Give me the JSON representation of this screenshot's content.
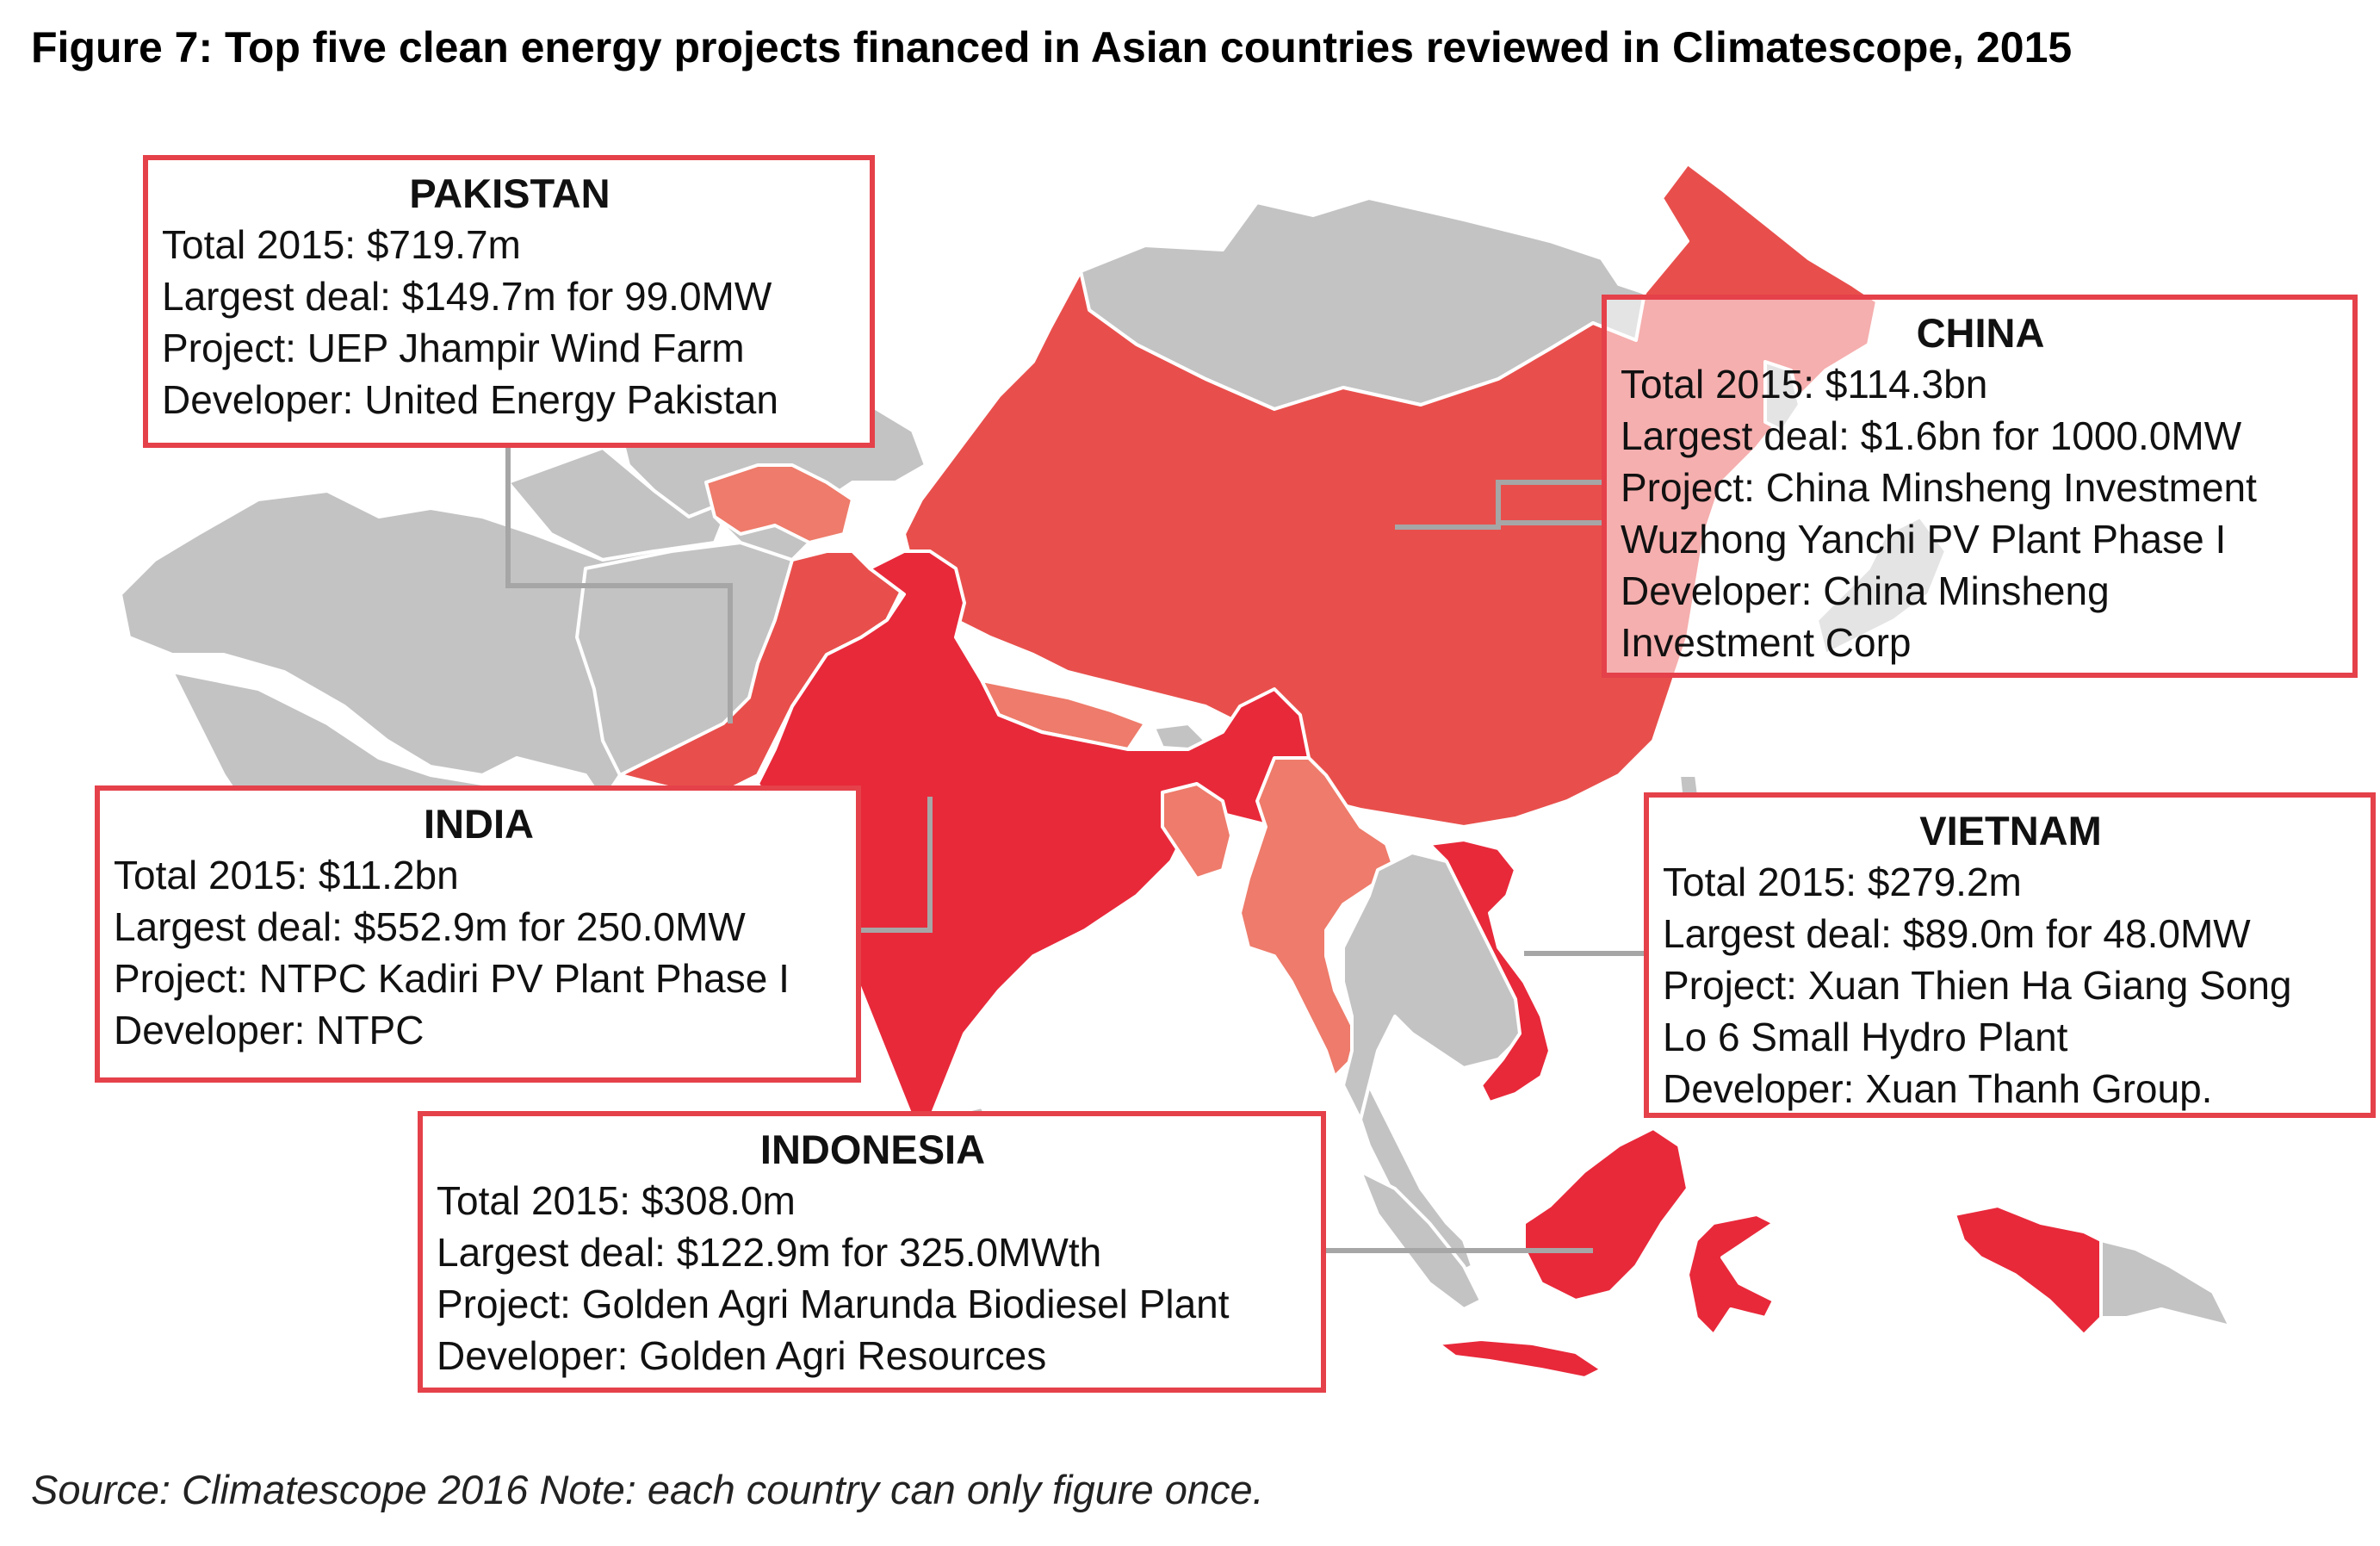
{
  "title": "Figure 7: Top five clean energy projects financed in Asian countries reviewed in Climatescope, 2015",
  "source": "Source: Climatescope 2016 Note: each country can only figure once.",
  "colors": {
    "high": "#e8293a",
    "mid": "#e84f4c",
    "low": "#ee7b6b",
    "pale": "#f29ca0",
    "not_covered": "#c3c3c3",
    "border": "#e5414a",
    "leader": "#a6a6a6"
  },
  "boxes": {
    "pakistan": {
      "country": "PAKISTAN",
      "total": "Total 2015: $719.7m",
      "largest_deal": "Largest deal: $149.7m  for 99.0MW",
      "project": "Project: UEP Jhampir Wind Farm",
      "developer": "Developer: United Energy Pakistan"
    },
    "china": {
      "country": "CHINA",
      "total": "Total 2015: $114.3bn",
      "largest_deal": "Largest deal: $1.6bn for 1000.0MW",
      "project_1": "Project: China Minsheng Investment",
      "project_2": "Wuzhong Yanchi PV Plant Phase I",
      "developer_1": "Developer: China Minsheng",
      "developer_2": "Investment Corp"
    },
    "india": {
      "country": "INDIA",
      "total": "Total 2015: $11.2bn",
      "largest_deal": "Largest deal: $552.9m for 250.0MW",
      "project": "Project: NTPC Kadiri PV Plant Phase I",
      "developer": "Developer: NTPC"
    },
    "vietnam": {
      "country": "VIETNAM",
      "total": "Total 2015: $279.2m",
      "largest_deal": "Largest deal: $89.0m  for 48.0MW",
      "project_1": "Project: Xuan Thien Ha Giang Song",
      "project_2": "Lo 6 Small Hydro Plant",
      "developer": "Developer: Xuan Thanh Group."
    },
    "indonesia": {
      "country": "INDONESIA",
      "total": "Total 2015: $308.0m",
      "largest_deal": "Largest deal: $122.9m for 325.0MWth",
      "project": "Project: Golden Agri Marunda Biodiesel Plant",
      "developer": "Developer: Golden Agri Resources"
    }
  }
}
